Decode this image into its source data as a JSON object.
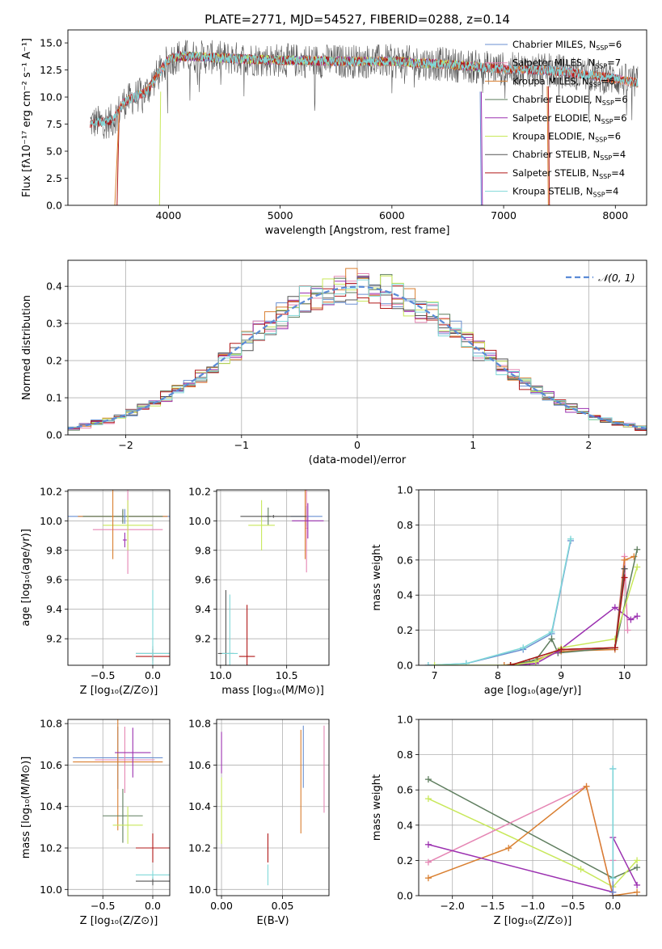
{
  "figure": {
    "title": "PLATE=2771, MJD=54527, FIBERID=0288, z=0.14"
  },
  "colors": {
    "Chabrier MILES": "#6a8fd0",
    "Salpeter MILES": "#e586b4",
    "Kroupa MILES": "#d97f30",
    "Chabrier ELODIE": "#5e7d5e",
    "Salpeter ELODIE": "#9b30b0",
    "Kroupa ELODIE": "#c8e85a",
    "Chabrier STELIB": "#555555",
    "Salpeter STELIB": "#b01818",
    "Kroupa STELIB": "#7fd8d8"
  },
  "chart_data": [
    {
      "id": "spectrum",
      "type": "line",
      "title": "PLATE=2771, MJD=54527, FIBERID=0288, z=0.14",
      "xlabel": "wavelength [Angstrom, rest frame]",
      "ylabel": "Flux [fλ10⁻¹⁷ erg cm⁻² s⁻¹ A⁻¹]",
      "xlim": [
        3100,
        8280
      ],
      "ylim": [
        0,
        16.2
      ],
      "xticks": [
        4000,
        5000,
        6000,
        7000,
        8000
      ],
      "yticks": [
        0.0,
        2.5,
        5.0,
        7.5,
        10.0,
        12.5,
        15.0
      ],
      "grid": false,
      "legend_position": "top-right",
      "legend": [
        {
          "name": "Chabrier MILES",
          "base": "Chabrier MILES, N",
          "sub": "SSP",
          "tail": "=6"
        },
        {
          "name": "Salpeter MILES",
          "base": "Salpeter MILES, N",
          "sub": "SSP",
          "tail": "=7"
        },
        {
          "name": "Kroupa MILES",
          "base": "Kroupa MILES, N",
          "sub": "SSP",
          "tail": "=6"
        },
        {
          "name": "Chabrier ELODIE",
          "base": "Chabrier ELODIE, N",
          "sub": "SSP",
          "tail": "=6"
        },
        {
          "name": "Salpeter ELODIE",
          "base": "Salpeter ELODIE, N",
          "sub": "SSP",
          "tail": "=6"
        },
        {
          "name": "Kroupa ELODIE",
          "base": "Kroupa ELODIE, N",
          "sub": "SSP",
          "tail": "=6"
        },
        {
          "name": "Chabrier STELIB",
          "base": "Chabrier STELIB, N",
          "sub": "SSP",
          "tail": "=4"
        },
        {
          "name": "Salpeter STELIB",
          "base": "Salpeter STELIB, N",
          "sub": "SSP",
          "tail": "=4"
        },
        {
          "name": "Kroupa STELIB",
          "base": "Kroupa STELIB, N",
          "sub": "SSP",
          "tail": "=4"
        }
      ],
      "continuum": {
        "x": [
          3300,
          3500,
          3600,
          3800,
          3900,
          4000,
          4100,
          4500,
          5000,
          5500,
          6000,
          6500,
          7000,
          7500,
          8000,
          8200
        ],
        "y": [
          7.6,
          7.8,
          9.5,
          10.5,
          12.0,
          13.4,
          13.8,
          13.6,
          13.4,
          13.3,
          13.3,
          13.0,
          12.6,
          12.4,
          11.7,
          11.3
        ]
      },
      "edges": [
        {
          "series": "Salpeter STELIB",
          "x": [
            3500,
            3540,
            3560
          ],
          "y": [
            0,
            0,
            9.0
          ]
        },
        {
          "series": "Kroupa MILES",
          "x": [
            3480,
            3520,
            3560
          ],
          "y": [
            0,
            0,
            9.0
          ]
        },
        {
          "series": "Kroupa ELODIE",
          "x": [
            3910,
            3920,
            3930
          ],
          "y": [
            0,
            0,
            10.5
          ]
        },
        {
          "series": "Chabrier MILES",
          "x": [
            6790,
            6800,
            6810
          ],
          "y": [
            10.5,
            0,
            0
          ]
        },
        {
          "series": "Salpeter ELODIE",
          "x": [
            6800,
            6810,
            6820
          ],
          "y": [
            10.5,
            0,
            0
          ]
        },
        {
          "series": "Salpeter STELIB",
          "x": [
            7400,
            7410,
            7420
          ],
          "y": [
            11.0,
            0,
            0
          ]
        },
        {
          "series": "Kroupa MILES",
          "x": [
            7390,
            7400,
            7410
          ],
          "y": [
            11.0,
            0,
            0
          ]
        }
      ]
    },
    {
      "id": "residuals",
      "type": "line",
      "xlabel": "(data-model)/error",
      "ylabel": "Normed distribution",
      "xlim": [
        -2.5,
        2.5
      ],
      "ylim": [
        0,
        0.47
      ],
      "xticks": [
        -2,
        -1,
        0,
        1,
        2
      ],
      "yticks": [
        0.0,
        0.1,
        0.2,
        0.3,
        0.4
      ],
      "grid": true,
      "legend_position": "top-right",
      "gaussian": {
        "name": "𝒩(0, 1)",
        "color": "#5b8bd6",
        "mu": 0,
        "sigma": 1
      }
    },
    {
      "id": "age-vs-Z",
      "type": "scatter",
      "xlabel": "Z [log₁₀(Z/Z⊙)]",
      "ylabel": "age  [log₁₀(age/yr)]",
      "xlim": [
        -0.85,
        0.17
      ],
      "ylim": [
        9.02,
        10.21
      ],
      "xticks": [
        -0.5,
        0.0
      ],
      "yticks": [
        9.2,
        9.4,
        9.6,
        9.8,
        10.0,
        10.2
      ],
      "grid": true,
      "points": [
        {
          "series": "Chabrier MILES",
          "x": -0.3,
          "y": 10.03,
          "xerr": 0.55,
          "yerr": 0.04
        },
        {
          "series": "Salpeter MILES",
          "x": -0.25,
          "y": 9.94,
          "xerr": 0.35,
          "yerr": 0.3
        },
        {
          "series": "Kroupa MILES",
          "x": -0.3,
          "y": 10.03,
          "xerr": 0.45,
          "yerr": 0.04
        },
        {
          "series": "Chabrier ELODIE",
          "x": -0.3,
          "y": 10.03,
          "xerr": 0.4,
          "yerr": 0.05
        },
        {
          "series": "Salpeter ELODIE",
          "x": -0.28,
          "y": 9.87,
          "xerr": 0.02,
          "yerr": 0.05
        },
        {
          "series": "Kroupa ELODIE",
          "x": -0.25,
          "y": 9.97,
          "xerr": 0.25,
          "yerr": 0.17
        },
        {
          "series": "Chabrier STELIB",
          "x": 0.0,
          "y": 9.1,
          "xerr": 0.17,
          "yerr": 0.05
        },
        {
          "series": "Salpeter STELIB",
          "x": 0.0,
          "y": 9.08,
          "xerr": 0.17,
          "yerr": 0.05
        },
        {
          "series": "Kroupa STELIB",
          "x": 0.0,
          "y": 9.1,
          "xerr": 0.17,
          "yerr": 0.43
        },
        {
          "series": "Kroupa MILES",
          "x": -0.4,
          "y": 10.03,
          "xerr": 0.01,
          "yerr": 0.29
        },
        {
          "series": "Chabrier MILES",
          "x": -0.28,
          "y": 10.03,
          "xerr": 0.01,
          "yerr": 0.05
        }
      ]
    },
    {
      "id": "age-vs-mass",
      "type": "scatter",
      "xlabel": "mass [log₁₀(M/M⊙)]",
      "ylabel": "",
      "xlim": [
        9.97,
        10.82
      ],
      "ylim": [
        9.02,
        10.21
      ],
      "xticks": [
        10.0,
        10.5
      ],
      "yticks": [
        9.2,
        9.4,
        9.6,
        9.8,
        10.0,
        10.2
      ],
      "grid": true,
      "points": [
        {
          "series": "Chabrier MILES",
          "x": 10.65,
          "y": 10.03,
          "xerr": 0.12,
          "yerr": 0.07
        },
        {
          "series": "Salpeter MILES",
          "x": 10.65,
          "y": 9.95,
          "xerr": 0.01,
          "yerr": 0.3
        },
        {
          "series": "Kroupa MILES",
          "x": 10.64,
          "y": 10.03,
          "xerr": 0.01,
          "yerr": 0.29
        },
        {
          "series": "Chabrier ELODIE",
          "x": 10.36,
          "y": 10.03,
          "xerr": 0.02,
          "yerr": 0.06
        },
        {
          "series": "Salpeter ELODIE",
          "x": 10.66,
          "y": 10.0,
          "xerr": 0.12,
          "yerr": 0.12
        },
        {
          "series": "Kroupa ELODIE",
          "x": 10.31,
          "y": 9.97,
          "xerr": 0.1,
          "yerr": 0.17
        },
        {
          "series": "Chabrier STELIB",
          "x": 10.04,
          "y": 9.1,
          "xerr": 0.06,
          "yerr": 0.43
        },
        {
          "series": "Salpeter STELIB",
          "x": 10.2,
          "y": 9.08,
          "xerr": 0.06,
          "yerr": 0.35
        },
        {
          "series": "Kroupa STELIB",
          "x": 10.07,
          "y": 9.1,
          "xerr": 0.06,
          "yerr": 0.4
        },
        {
          "series": "Chabrier STELIB",
          "x": 10.4,
          "y": 10.03,
          "xerr": 0.25,
          "yerr": 0.01
        }
      ]
    },
    {
      "id": "mass-weight-vs-age",
      "type": "line",
      "xlabel": "age  [log₁₀(age/yr)]",
      "ylabel": "mass weight",
      "xlim": [
        6.75,
        10.35
      ],
      "ylim": [
        0,
        1.0
      ],
      "xticks": [
        7,
        8,
        9,
        10
      ],
      "yticks": [
        0.0,
        0.2,
        0.4,
        0.6,
        0.8,
        1.0
      ],
      "grid": true,
      "series": [
        {
          "name": "Chabrier MILES",
          "x": [
            6.9,
            7.5,
            8.4,
            8.85,
            9.15
          ],
          "y": [
            0.0,
            0.01,
            0.09,
            0.18,
            0.71
          ]
        },
        {
          "name": "Kroupa STELIB",
          "x": [
            6.9,
            7.5,
            8.4,
            8.85,
            9.15
          ],
          "y": [
            0.0,
            0.01,
            0.1,
            0.19,
            0.72
          ]
        },
        {
          "name": "Salpeter MILES",
          "x": [
            8.1,
            8.5,
            9.0,
            9.85,
            10.0,
            10.05
          ],
          "y": [
            0.0,
            0.02,
            0.08,
            0.1,
            0.62,
            0.2
          ]
        },
        {
          "name": "Kroupa MILES",
          "x": [
            8.1,
            8.5,
            9.0,
            9.85,
            10.0,
            10.15
          ],
          "y": [
            0.0,
            0.02,
            0.08,
            0.09,
            0.6,
            0.62
          ]
        },
        {
          "name": "Chabrier ELODIE",
          "x": [
            8.2,
            8.6,
            8.85,
            8.95,
            9.85,
            10.2
          ],
          "y": [
            0.0,
            0.03,
            0.15,
            0.07,
            0.1,
            0.66
          ]
        },
        {
          "name": "Salpeter ELODIE",
          "x": [
            8.2,
            8.6,
            8.95,
            9.85,
            10.1,
            10.2
          ],
          "y": [
            0.0,
            0.01,
            0.08,
            0.33,
            0.26,
            0.28
          ]
        },
        {
          "name": "Kroupa ELODIE",
          "x": [
            7.0,
            8.2,
            8.6,
            9.0,
            9.85,
            10.2
          ],
          "y": [
            0.0,
            0.0,
            0.02,
            0.1,
            0.15,
            0.56
          ]
        },
        {
          "name": "Chabrier STELIB",
          "x": [
            8.2,
            9.0,
            9.85,
            10.0
          ],
          "y": [
            0.0,
            0.09,
            0.1,
            0.55
          ]
        },
        {
          "name": "Salpeter STELIB",
          "x": [
            8.2,
            9.0,
            9.85,
            10.0
          ],
          "y": [
            0.0,
            0.09,
            0.1,
            0.5
          ]
        }
      ]
    },
    {
      "id": "mass-vs-Z",
      "type": "scatter",
      "xlabel": "Z [log₁₀(Z/Z⊙)]",
      "ylabel": "mass [log₁₀(M/M⊙)]",
      "xlim": [
        -0.85,
        0.17
      ],
      "ylim": [
        9.97,
        10.82
      ],
      "xticks": [
        -0.5,
        0.0
      ],
      "yticks": [
        10.0,
        10.2,
        10.4,
        10.6,
        10.8
      ],
      "grid": true,
      "points": [
        {
          "series": "Chabrier MILES",
          "x": -0.35,
          "y": 10.635,
          "xerr": 0.45,
          "yerr": 0.15
        },
        {
          "series": "Salpeter MILES",
          "x": -0.28,
          "y": 10.625,
          "xerr": 0.3,
          "yerr": 0.16
        },
        {
          "series": "Kroupa MILES",
          "x": -0.35,
          "y": 10.615,
          "xerr": 0.45,
          "yerr": 0.33
        },
        {
          "series": "Chabrier ELODIE",
          "x": -0.3,
          "y": 10.355,
          "xerr": 0.2,
          "yerr": 0.13
        },
        {
          "series": "Salpeter ELODIE",
          "x": -0.2,
          "y": 10.66,
          "xerr": 0.18,
          "yerr": 0.12
        },
        {
          "series": "Kroupa ELODIE",
          "x": -0.25,
          "y": 10.31,
          "xerr": 0.15,
          "yerr": 0.09
        },
        {
          "series": "Chabrier STELIB",
          "x": 0.0,
          "y": 10.04,
          "xerr": 0.17,
          "yerr": 0.02
        },
        {
          "series": "Salpeter STELIB",
          "x": 0.0,
          "y": 10.2,
          "xerr": 0.17,
          "yerr": 0.07
        },
        {
          "series": "Kroupa STELIB",
          "x": 0.0,
          "y": 10.07,
          "xerr": 0.17,
          "yerr": 0.02
        }
      ]
    },
    {
      "id": "mass-vs-EBV",
      "type": "scatter",
      "xlabel": "E(B-V)",
      "ylabel": "",
      "xlim": [
        -0.004,
        0.088
      ],
      "ylim": [
        9.97,
        10.82
      ],
      "xticks": [
        0.0,
        0.05
      ],
      "yticks": [
        10.0,
        10.2,
        10.4,
        10.6,
        10.8
      ],
      "grid": true,
      "points": [
        {
          "series": "Salpeter ELODIE",
          "x": 0.0,
          "y": 10.66,
          "xerr": 0,
          "yerr": 0.1
        },
        {
          "series": "Kroupa ELODIE",
          "x": 0.0,
          "y": 10.38,
          "xerr": 0,
          "yerr": 0.16
        },
        {
          "series": "Salpeter STELIB",
          "x": 0.038,
          "y": 10.2,
          "xerr": 0,
          "yerr": 0.07
        },
        {
          "series": "Kroupa STELIB",
          "x": 0.038,
          "y": 10.07,
          "xerr": 0,
          "yerr": 0.05
        },
        {
          "series": "Chabrier MILES",
          "x": 0.067,
          "y": 10.64,
          "xerr": 0,
          "yerr": 0.15
        },
        {
          "series": "Kroupa MILES",
          "x": 0.065,
          "y": 10.52,
          "xerr": 0,
          "yerr": 0.25
        },
        {
          "series": "Salpeter MILES",
          "x": 0.084,
          "y": 10.58,
          "xerr": 0,
          "yerr": 0.21
        }
      ]
    },
    {
      "id": "mass-weight-vs-Z",
      "type": "line",
      "xlabel": "Z [log₁₀(Z/Z⊙)]",
      "ylabel": "mass weight",
      "xlim": [
        -2.42,
        0.42
      ],
      "ylim": [
        0,
        1.0
      ],
      "xticks": [
        -2.0,
        -1.5,
        -1.0,
        -0.5,
        0.0
      ],
      "yticks": [
        0.0,
        0.2,
        0.4,
        0.6,
        0.8,
        1.0
      ],
      "grid": true,
      "series": [
        {
          "name": "Chabrier ELODIE",
          "x": [
            -2.3,
            0.0,
            0.3
          ],
          "y": [
            0.66,
            0.1,
            0.16
          ]
        },
        {
          "name": "Kroupa ELODIE",
          "x": [
            -2.3,
            -0.4,
            0.0,
            0.3
          ],
          "y": [
            0.55,
            0.15,
            0.05,
            0.2
          ]
        },
        {
          "name": "Salpeter MILES",
          "x": [
            -2.3,
            -0.33,
            0.0,
            0.0
          ],
          "y": [
            0.19,
            0.62,
            0.0,
            0.2
          ]
        },
        {
          "name": "Kroupa MILES",
          "x": [
            -2.3,
            -1.3,
            -0.33,
            0.0,
            0.3
          ],
          "y": [
            0.1,
            0.27,
            0.62,
            0.0,
            0.02
          ]
        },
        {
          "name": "Salpeter ELODIE",
          "x": [
            -2.3,
            0.0,
            0.0,
            0.3
          ],
          "y": [
            0.29,
            0.02,
            0.33,
            0.06
          ]
        },
        {
          "name": "Chabrier MILES",
          "x": [
            0.0,
            0.0
          ],
          "y": [
            0.72,
            0.02
          ]
        },
        {
          "name": "Kroupa STELIB",
          "x": [
            0.0,
            0.0
          ],
          "y": [
            0.72,
            0.1
          ]
        }
      ]
    }
  ]
}
